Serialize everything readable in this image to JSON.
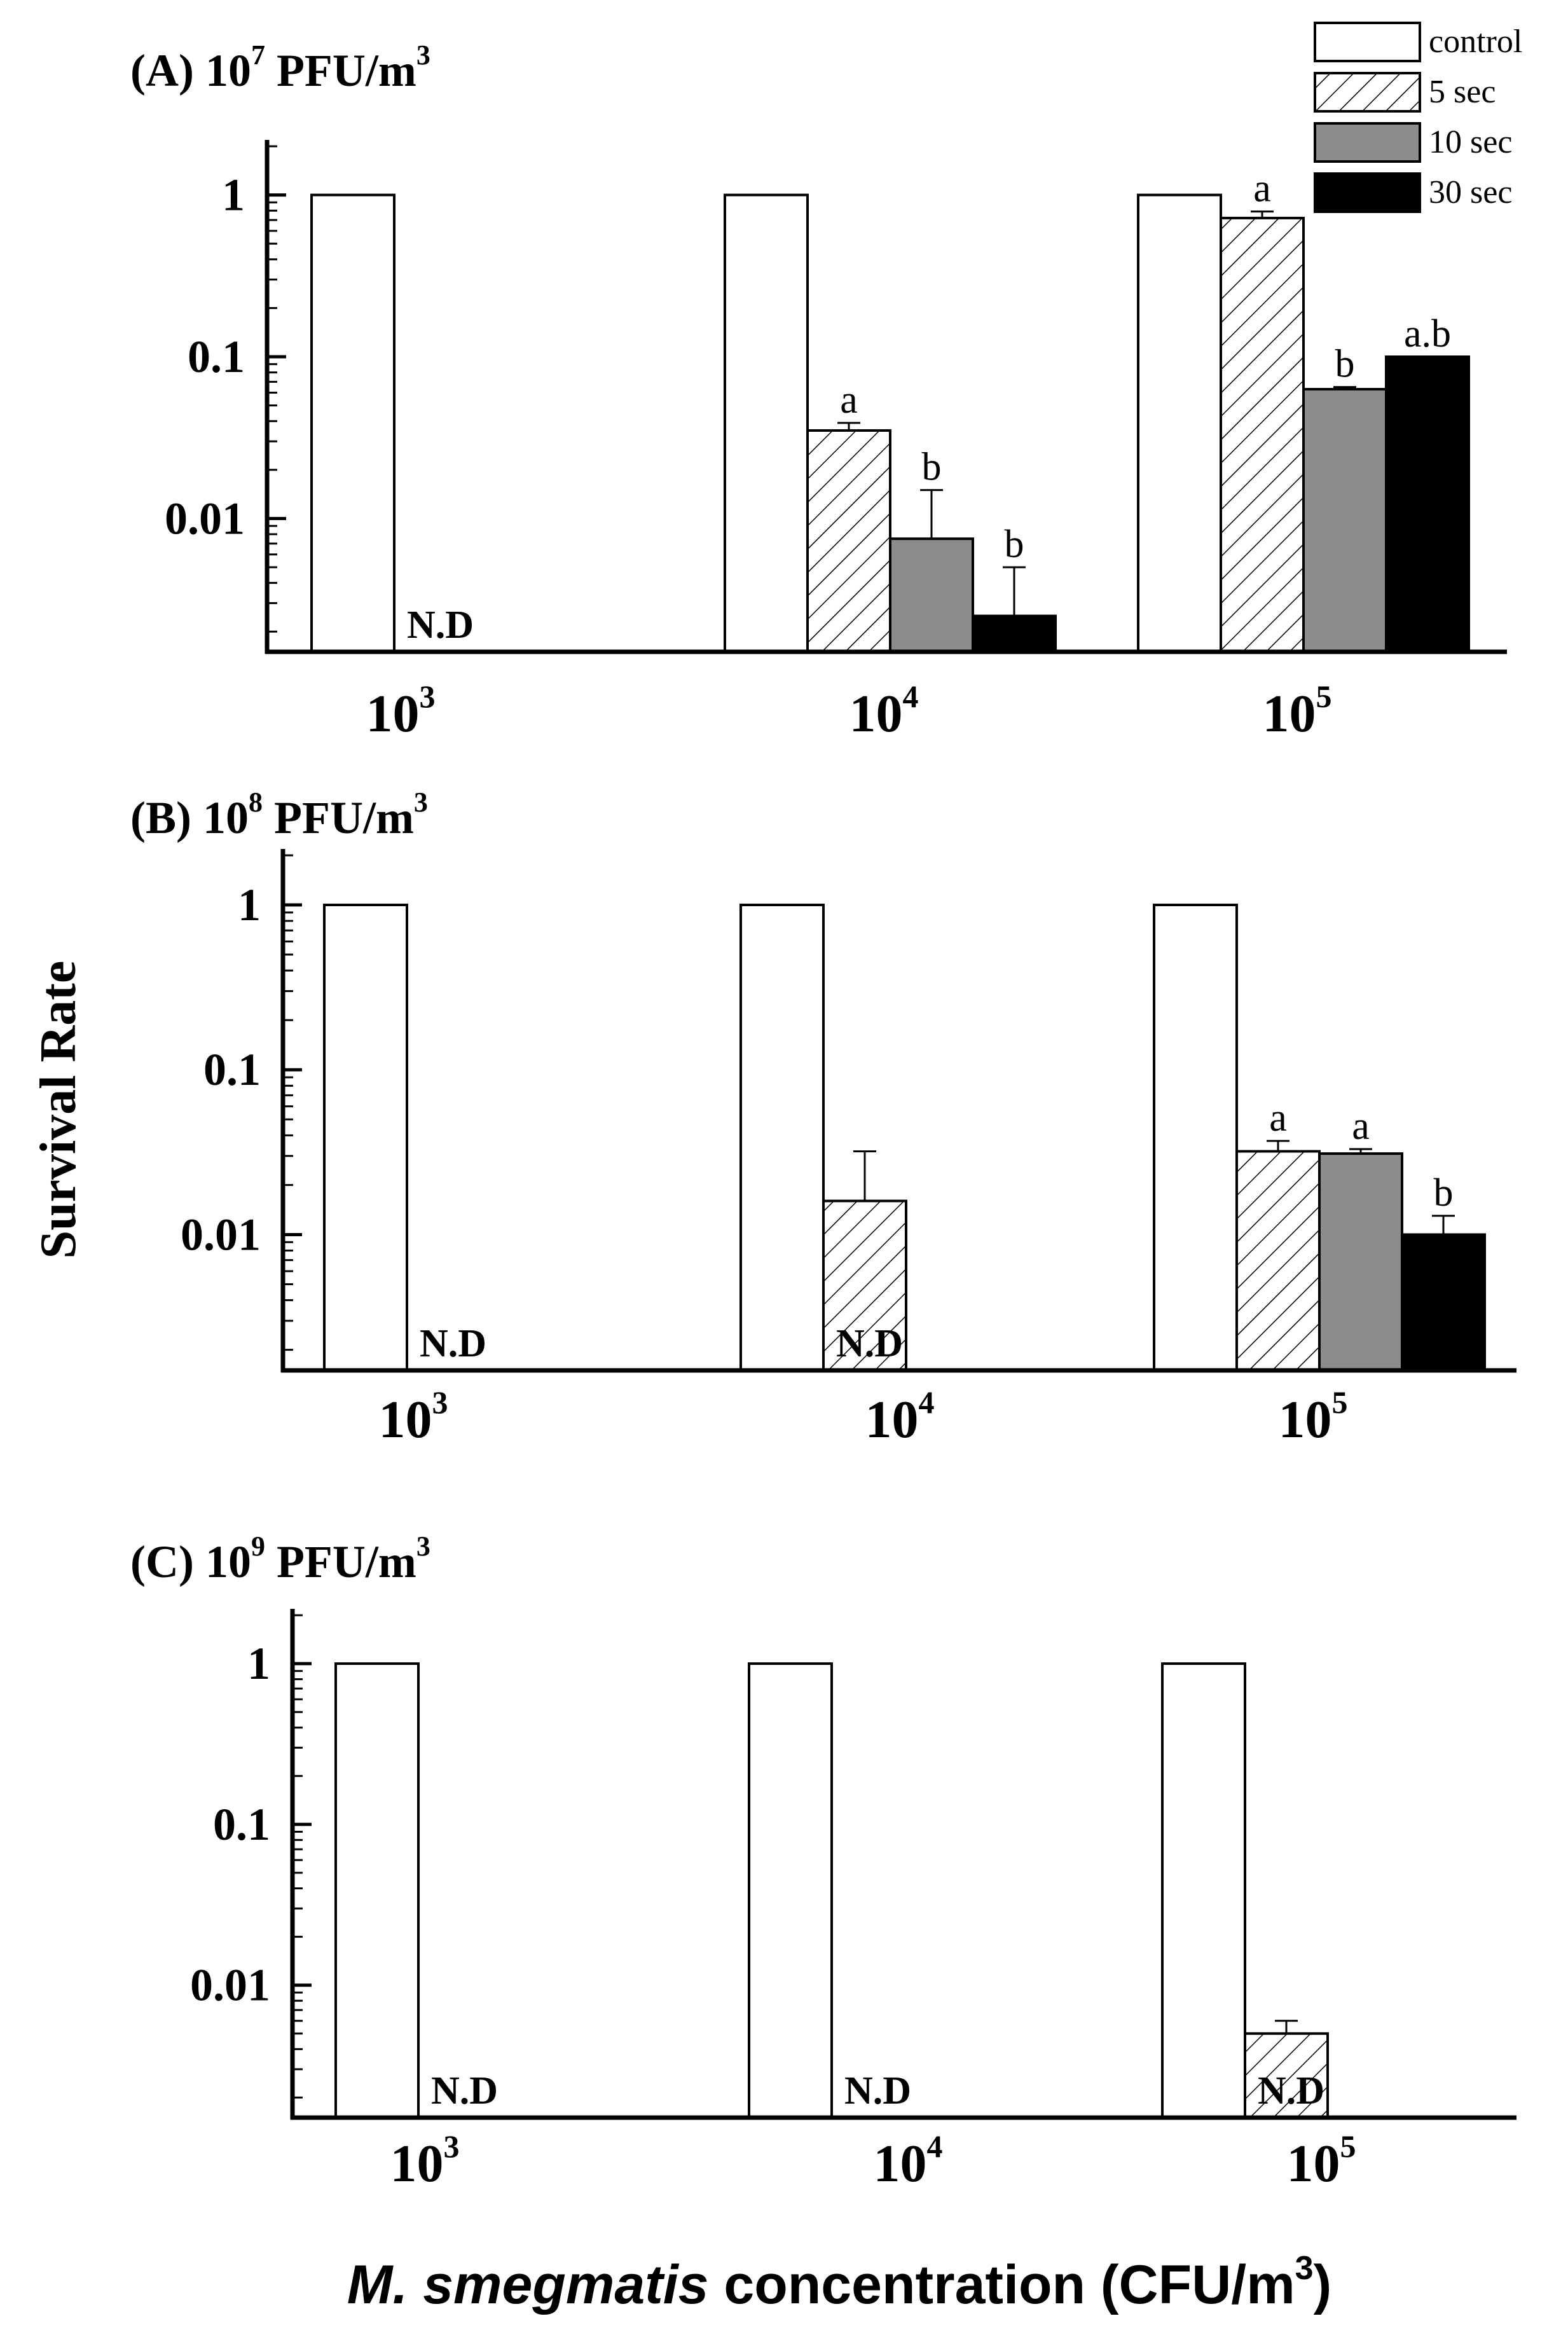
{
  "figure": {
    "ylabel": "Survival Rate",
    "xlabel_italic": "M. smegmatis",
    "xlabel_rest": " concentration (CFU/m",
    "xlabel_sup": "3",
    "xlabel_end": ")"
  },
  "legend": [
    {
      "label": "control",
      "fill": "white"
    },
    {
      "label": "5 sec",
      "fill": "hatch"
    },
    {
      "label": "10 sec",
      "fill": "gray"
    },
    {
      "label": "30 sec",
      "fill": "black"
    }
  ],
  "colors": {
    "axis": "#000000",
    "gray": "#8c8c8c",
    "black": "#000000",
    "white": "#ffffff"
  },
  "chart_data": [
    {
      "type": "bar",
      "title_prefix": "(A) 10",
      "title_exp": "7",
      "title_suffix": " PFU/m",
      "title_sup": "3",
      "yscale": "log",
      "ylim": [
        0.0015,
        2
      ],
      "yticks": [
        {
          "value": 1,
          "label": "1"
        },
        {
          "value": 0.1,
          "label": "0.1"
        },
        {
          "value": 0.01,
          "label": "0.01"
        }
      ],
      "categories": [
        {
          "base": "10",
          "exp": "3"
        },
        {
          "base": "10",
          "exp": "4"
        },
        {
          "base": "10",
          "exp": "5"
        }
      ],
      "series": [
        {
          "name": "control",
          "values": [
            1,
            1,
            1
          ],
          "errors": [
            null,
            null,
            null
          ],
          "letters": [
            null,
            null,
            null
          ]
        },
        {
          "name": "5 sec",
          "values": [
            null,
            0.035,
            0.72
          ],
          "errors": [
            null,
            0.004,
            0.07
          ],
          "letters": [
            null,
            "a",
            "a"
          ]
        },
        {
          "name": "10 sec",
          "values": [
            null,
            0.0075,
            0.063
          ],
          "errors": [
            null,
            0.0075,
            0.002
          ],
          "letters": [
            null,
            "b",
            "b"
          ]
        },
        {
          "name": "30 sec",
          "values": [
            null,
            0.0025,
            0.1
          ],
          "errors": [
            null,
            0.0025,
            null
          ],
          "letters": [
            null,
            "b",
            "a.b"
          ]
        }
      ],
      "nd_labels": [
        {
          "category": 0,
          "text": "N.D"
        }
      ]
    },
    {
      "type": "bar",
      "title_prefix": "(B) 10",
      "title_exp": "8",
      "title_suffix": " PFU/m",
      "title_sup": "3",
      "yscale": "log",
      "ylim": [
        0.0015,
        2
      ],
      "yticks": [
        {
          "value": 1,
          "label": "1"
        },
        {
          "value": 0.1,
          "label": "0.1"
        },
        {
          "value": 0.01,
          "label": "0.01"
        }
      ],
      "categories": [
        {
          "base": "10",
          "exp": "3"
        },
        {
          "base": "10",
          "exp": "4"
        },
        {
          "base": "10",
          "exp": "5"
        }
      ],
      "series": [
        {
          "name": "control",
          "values": [
            1,
            1,
            1
          ],
          "errors": [
            null,
            null,
            null
          ],
          "letters": [
            null,
            null,
            null
          ]
        },
        {
          "name": "5 sec",
          "values": [
            null,
            0.016,
            0.032
          ],
          "errors": [
            null,
            0.016,
            0.005
          ],
          "letters": [
            null,
            null,
            "a"
          ]
        },
        {
          "name": "10 sec",
          "values": [
            null,
            null,
            0.031
          ],
          "errors": [
            null,
            null,
            0.002
          ],
          "letters": [
            null,
            null,
            "a"
          ]
        },
        {
          "name": "30 sec",
          "values": [
            null,
            null,
            0.01
          ],
          "errors": [
            null,
            null,
            0.003
          ],
          "letters": [
            null,
            null,
            "b"
          ]
        }
      ],
      "nd_labels": [
        {
          "category": 0,
          "text": "N.D"
        },
        {
          "category": 1,
          "text": "N.D"
        }
      ]
    },
    {
      "type": "bar",
      "title_prefix": "(C) 10",
      "title_exp": "9",
      "title_suffix": " PFU/m",
      "title_sup": "3",
      "yscale": "log",
      "ylim": [
        0.0015,
        2
      ],
      "yticks": [
        {
          "value": 1,
          "label": "1"
        },
        {
          "value": 0.1,
          "label": "0.1"
        },
        {
          "value": 0.01,
          "label": "0.01"
        }
      ],
      "categories": [
        {
          "base": "10",
          "exp": "3"
        },
        {
          "base": "10",
          "exp": "4"
        },
        {
          "base": "10",
          "exp": "5"
        }
      ],
      "series": [
        {
          "name": "control",
          "values": [
            1,
            1,
            1
          ],
          "errors": [
            null,
            null,
            null
          ],
          "letters": [
            null,
            null,
            null
          ]
        },
        {
          "name": "5 sec",
          "values": [
            null,
            null,
            0.005
          ],
          "errors": [
            null,
            null,
            0.001
          ],
          "letters": [
            null,
            null,
            null
          ]
        },
        {
          "name": "10 sec",
          "values": [
            null,
            null,
            null
          ],
          "errors": [
            null,
            null,
            null
          ],
          "letters": [
            null,
            null,
            null
          ]
        },
        {
          "name": "30 sec",
          "values": [
            null,
            null,
            null
          ],
          "errors": [
            null,
            null,
            null
          ],
          "letters": [
            null,
            null,
            null
          ]
        }
      ],
      "nd_labels": [
        {
          "category": 0,
          "text": "N.D"
        },
        {
          "category": 1,
          "text": "N.D"
        },
        {
          "category": 2,
          "text": "N.D"
        }
      ]
    }
  ]
}
